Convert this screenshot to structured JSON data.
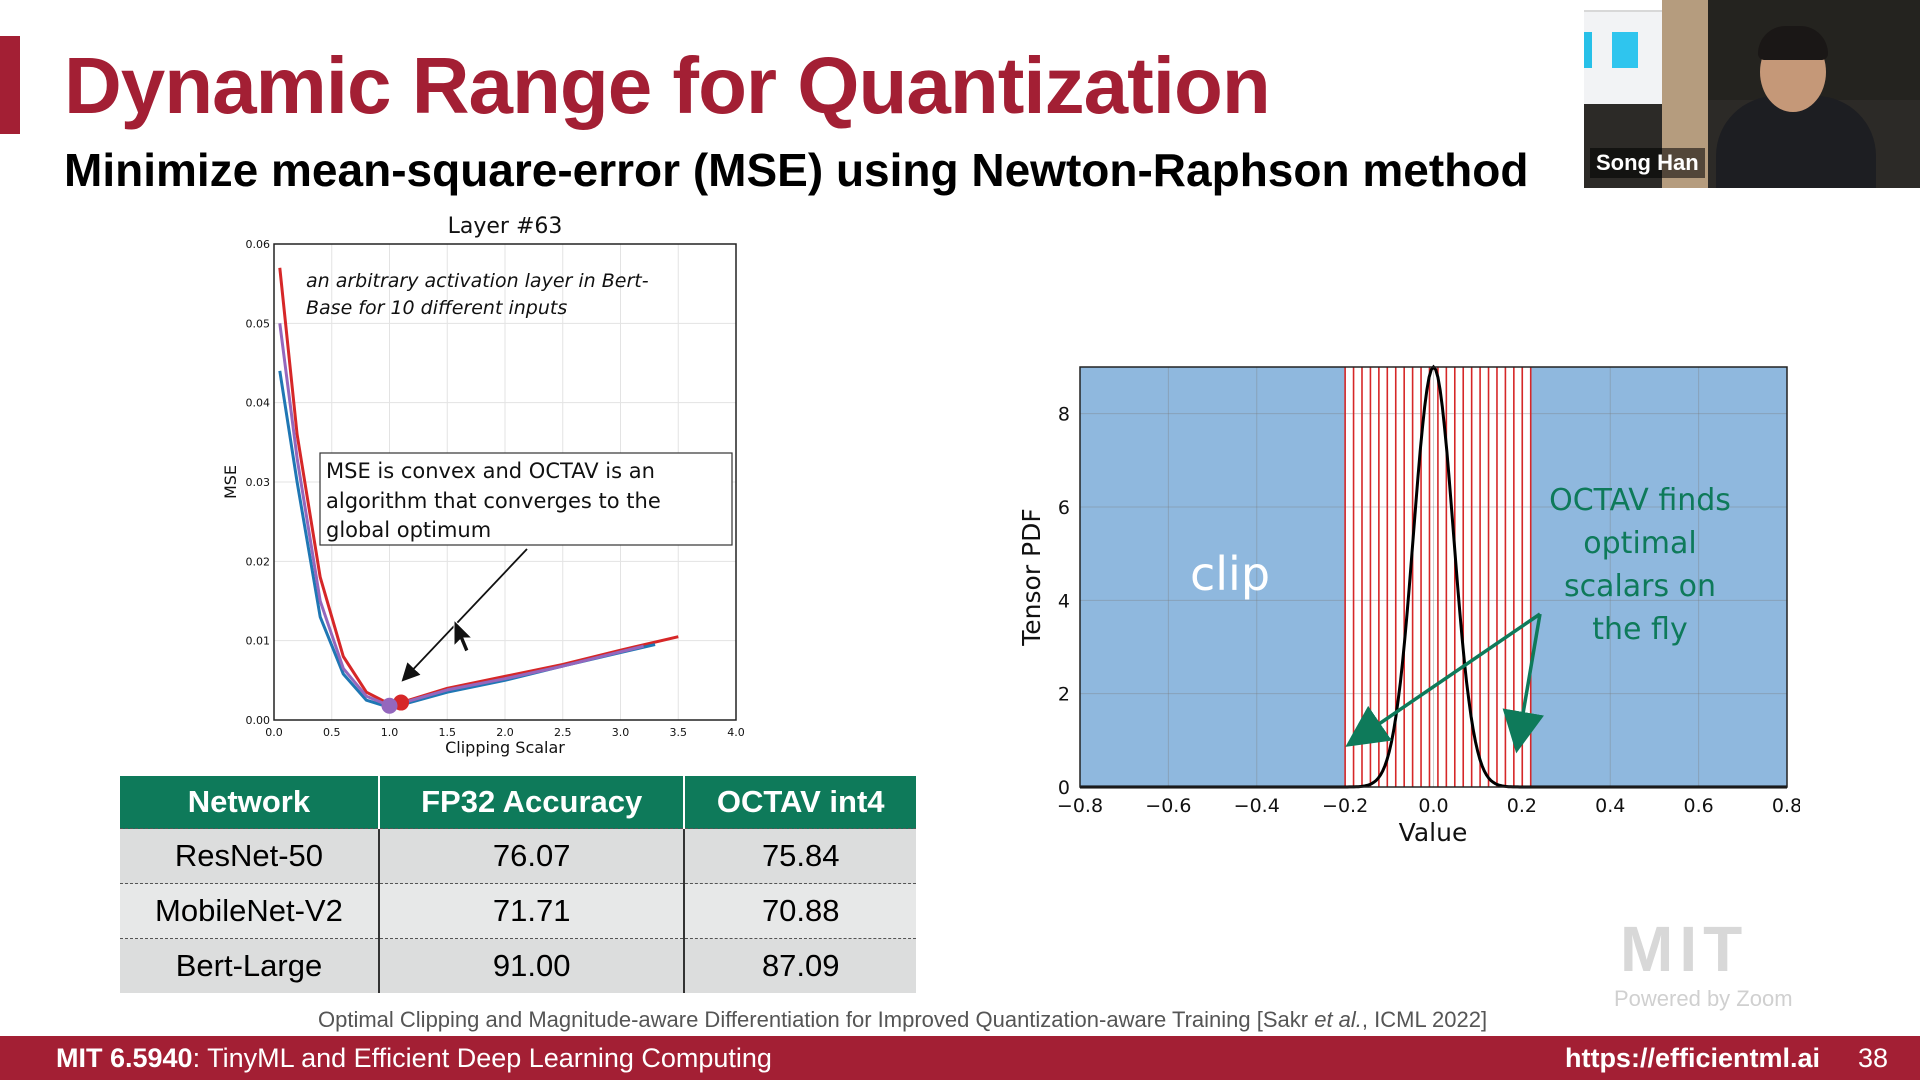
{
  "slide": {
    "title": "Dynamic Range for Quantization",
    "subtitle": "Minimize mean-square-error (MSE) using Newton-Raphson method"
  },
  "video": {
    "name": "Song Han"
  },
  "left_chart_annotations": {
    "caption_line1": "an arbitrary activation layer in Bert-",
    "caption_line2": "Base for 10 different inputs",
    "callout_line1": "MSE is convex and OCTAV is an",
    "callout_line2": "algorithm that  converges to the",
    "callout_line3": "global optimum"
  },
  "right_chart_annotations": {
    "clip_label": "clip",
    "octav_line1": "OCTAV finds",
    "octav_line2": "optimal",
    "octav_line3": "scalars on",
    "octav_line4": "the fly"
  },
  "chart_data": [
    {
      "type": "line",
      "title": "Layer #63",
      "xlabel": "Clipping Scalar",
      "ylabel": "MSE",
      "xlim": [
        0.0,
        4.0
      ],
      "ylim": [
        0.0,
        0.06
      ],
      "x_ticks": [
        "0.0",
        "0.5",
        "1.0",
        "1.5",
        "2.0",
        "2.5",
        "3.0",
        "3.5",
        "4.0"
      ],
      "y_ticks": [
        "0.00",
        "0.01",
        "0.02",
        "0.03",
        "0.04",
        "0.05",
        "0.06"
      ],
      "grid": true,
      "series": [
        {
          "color": "#d62728",
          "x": [
            0.05,
            0.2,
            0.4,
            0.6,
            0.8,
            1.0,
            1.1,
            1.5,
            2.0,
            2.5,
            3.0,
            3.5
          ],
          "y": [
            0.057,
            0.036,
            0.018,
            0.008,
            0.0035,
            0.002,
            0.0022,
            0.004,
            0.0055,
            0.007,
            0.0088,
            0.0105
          ]
        },
        {
          "color": "#1f77b4",
          "x": [
            0.05,
            0.2,
            0.4,
            0.6,
            0.8,
            1.0,
            1.1,
            1.5,
            2.0,
            2.5,
            3.0,
            3.3
          ],
          "y": [
            0.044,
            0.03,
            0.013,
            0.0058,
            0.0025,
            0.0016,
            0.0019,
            0.0035,
            0.005,
            0.0068,
            0.0085,
            0.0095
          ]
        },
        {
          "color": "#9467bd",
          "x": [
            0.05,
            0.2,
            0.4,
            0.6,
            0.8,
            1.0,
            1.1,
            1.5,
            2.0,
            2.5,
            3.0,
            3.2
          ],
          "y": [
            0.05,
            0.033,
            0.015,
            0.0065,
            0.003,
            0.0018,
            0.0021,
            0.0038,
            0.0052,
            0.0068,
            0.0086,
            0.0093
          ]
        }
      ],
      "markers": [
        {
          "color": "#d62728",
          "x": 1.1,
          "y": 0.0022
        },
        {
          "color": "#9467bd",
          "x": 1.0,
          "y": 0.0018
        }
      ]
    },
    {
      "type": "area",
      "xlabel": "Value",
      "ylabel": "Tensor PDF",
      "xlim": [
        -0.8,
        0.8
      ],
      "ylim": [
        0,
        9
      ],
      "x_ticks": [
        "−0.8",
        "−0.6",
        "−0.4",
        "−0.2",
        "0.0",
        "0.2",
        "0.4",
        "0.6",
        "0.8"
      ],
      "y_ticks": [
        "0",
        "2",
        "4",
        "6",
        "8"
      ],
      "grid": true,
      "clip_regions": [
        [
          -0.8,
          -0.2
        ],
        [
          0.22,
          0.8
        ]
      ],
      "clip_color": "#8fb8de",
      "quantization_line_color": "#d62728",
      "pdf": {
        "mean": 0.0,
        "std": 0.045,
        "peak": 9.0,
        "color": "#000000"
      }
    }
  ],
  "table": {
    "headers": [
      "Network",
      "FP32 Accuracy",
      "OCTAV int4"
    ],
    "rows": [
      [
        "ResNet-50",
        "76.07",
        "75.84"
      ],
      [
        "MobileNet-V2",
        "71.71",
        "70.88"
      ],
      [
        "Bert-Large",
        "91.00",
        "87.09"
      ]
    ]
  },
  "citation": {
    "prefix": "Optimal Clipping and Magnitude-aware Differentiation for Improved Quantization-aware Training [Sakr ",
    "etal": "et al.",
    "suffix": ", ICML 2022]"
  },
  "watermark": {
    "logo": "MIT",
    "powered": "Powered by Zoom"
  },
  "footer": {
    "course": "MIT 6.5940",
    "course_title": ": TinyML and Efficient Deep Learning Computing",
    "url": "https://efficientml.ai",
    "page": "38"
  },
  "colors": {
    "brand": "#a31f34",
    "table_header": "#0e7a5a",
    "octav_text": "#0e7a5a"
  }
}
